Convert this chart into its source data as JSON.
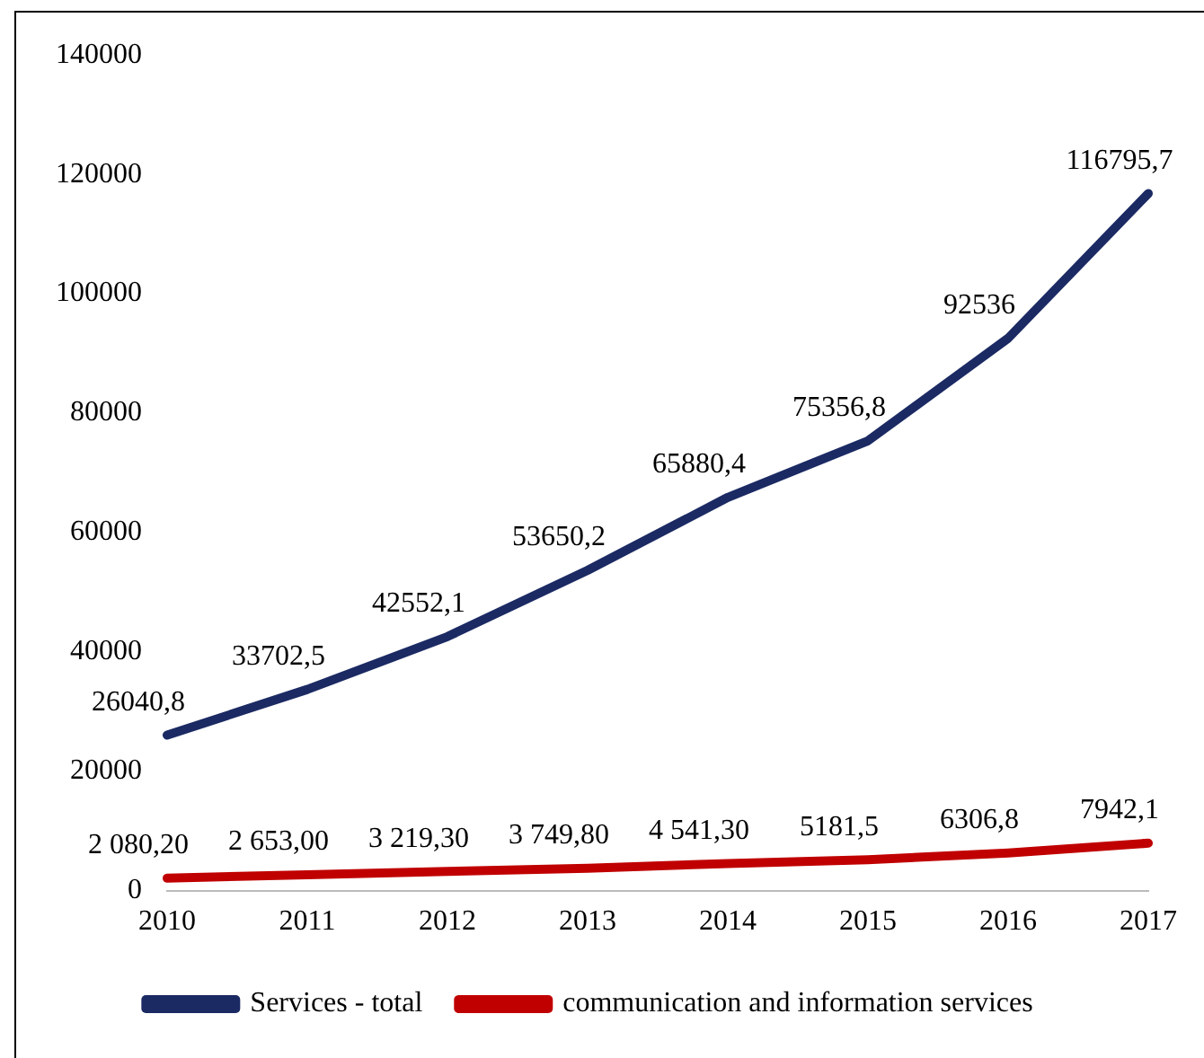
{
  "chart_data": {
    "type": "line",
    "categories": [
      "2010",
      "2011",
      "2012",
      "2013",
      "2014",
      "2015",
      "2016",
      "2017"
    ],
    "series": [
      {
        "name": "Services - total",
        "color": "#1b2a63",
        "values": [
          26040.8,
          33702.5,
          42552.1,
          53650.2,
          65880.4,
          75356.8,
          92536,
          116795.7
        ],
        "value_labels": [
          "26040,8",
          "33702,5",
          "42552,1",
          "53650,2",
          "65880,4",
          "75356,8",
          "92536",
          "116795,7"
        ]
      },
      {
        "name": "communication and information services",
        "color": "#c00000",
        "values": [
          2080.2,
          2653,
          3219.3,
          3749.8,
          4541.3,
          5181.5,
          6306.8,
          7942.1
        ],
        "value_labels": [
          "2 080,20",
          "2 653,00",
          "3 219,30",
          "3 749,80",
          "4 541,30",
          "5181,5",
          "6306,8",
          "7942,1"
        ]
      }
    ],
    "ylim": [
      0,
      140000
    ],
    "yticks": [
      0,
      20000,
      40000,
      60000,
      80000,
      100000,
      120000,
      140000
    ],
    "grid": false,
    "legend": "bottom",
    "marker": "none",
    "line_style": "solid"
  }
}
